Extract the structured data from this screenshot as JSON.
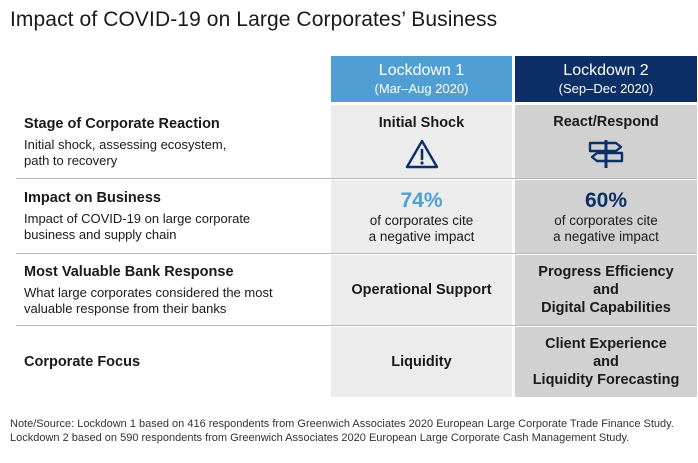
{
  "title": "Impact of COVID-19 on Large Corporates’ Business",
  "columns": [
    {
      "name": "Lockdown 1",
      "range": "(Mar–Aug 2020)",
      "color": "#4f9fd4"
    },
    {
      "name": "Lockdown 2",
      "range": "(Sep–Dec 2020)",
      "color": "#0b2f66"
    }
  ],
  "rows": {
    "stage": {
      "title": "Stage of Corporate Reaction",
      "desc_line1": "Initial shock, assessing ecosystem,",
      "desc_line2": "path to recovery",
      "lockdown1": "Initial Shock",
      "lockdown1_icon": "warning-triangle-icon",
      "lockdown2": "React/Respond",
      "lockdown2_icon": "signpost-icon"
    },
    "impact": {
      "title": "Impact on Business",
      "desc_line1": "Impact of COVID-19 on large corporate",
      "desc_line2": "business and supply chain",
      "lockdown1_pct": "74%",
      "lockdown2_pct": "60%",
      "sub_line1": "of corporates cite",
      "sub_line2": "a negative impact"
    },
    "response": {
      "title": "Most Valuable Bank Response",
      "desc_line1": "What large corporates considered the most",
      "desc_line2": "valuable response from their banks",
      "lockdown1": "Operational Support",
      "lockdown2_line1": "Progress Efficiency",
      "lockdown2_line2": "and",
      "lockdown2_line3": "Digital Capabilities"
    },
    "focus": {
      "title": "Corporate Focus",
      "lockdown1": "Liquidity",
      "lockdown2_line1": "Client Experience",
      "lockdown2_line2": "and",
      "lockdown2_line3": "Liquidity Forecasting"
    }
  },
  "note_line1": "Note/Source: Lockdown 1 based on 416 respondents from Greenwich Associates 2020 European Large Corporate Trade Finance Study.",
  "note_line2": "Lockdown 2 based on 590 respondents from Greenwich Associates 2020 European Large Corporate Cash Management Study."
}
